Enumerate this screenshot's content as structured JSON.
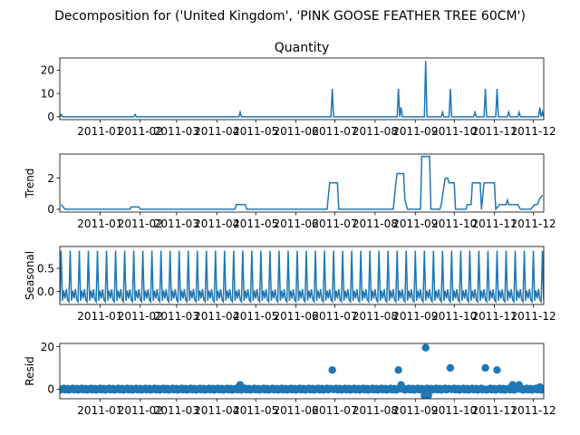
{
  "figure": {
    "suptitle": "Decomposition for ('United Kingdom', 'PINK GOOSE FEATHER TREE 60CM')"
  },
  "colors": {
    "series": "#1f77b4",
    "axis": "#000000",
    "background": "#ffffff"
  },
  "chart_data": [
    {
      "type": "line",
      "title": "Quantity",
      "ylabel": "",
      "ylim": [
        -1.2,
        25.2
      ],
      "yticks": [
        0,
        10,
        20
      ],
      "xlim": [
        "2010-12-01",
        "2011-12-09"
      ],
      "xticks": [
        "2011-01",
        "2011-02",
        "2011-03",
        "2011-04",
        "2011-05",
        "2011-06",
        "2011-07",
        "2011-08",
        "2011-09",
        "2011-10",
        "2011-11",
        "2011-12"
      ],
      "baseline": 0,
      "spikes": [
        {
          "x": "2010-12-02",
          "y": 1
        },
        {
          "x": "2011-01-28",
          "y": 1
        },
        {
          "x": "2011-04-19",
          "y": 2
        },
        {
          "x": "2011-06-29",
          "y": 12
        },
        {
          "x": "2011-08-19",
          "y": 12
        },
        {
          "x": "2011-08-21",
          "y": 4
        },
        {
          "x": "2011-09-09",
          "y": 24
        },
        {
          "x": "2011-09-22",
          "y": 2
        },
        {
          "x": "2011-09-28",
          "y": 12
        },
        {
          "x": "2011-10-17",
          "y": 2
        },
        {
          "x": "2011-10-25",
          "y": 12
        },
        {
          "x": "2011-11-03",
          "y": 12
        },
        {
          "x": "2011-11-12",
          "y": 2
        },
        {
          "x": "2011-11-20",
          "y": 2
        },
        {
          "x": "2011-12-06",
          "y": 4
        },
        {
          "x": "2011-12-08",
          "y": 2
        }
      ]
    },
    {
      "type": "line",
      "title": "",
      "ylabel": "Trend",
      "ylim": [
        -0.18,
        3.55
      ],
      "yticks": [
        0,
        2
      ],
      "xlim": [
        "2010-12-01",
        "2011-12-09"
      ],
      "xticks": [
        "2011-01",
        "2011-02",
        "2011-03",
        "2011-04",
        "2011-05",
        "2011-06",
        "2011-07",
        "2011-08",
        "2011-09",
        "2011-10",
        "2011-11",
        "2011-12"
      ],
      "points": [
        {
          "x": "2010-12-02",
          "y": 0.3
        },
        {
          "x": "2010-12-05",
          "y": 0
        },
        {
          "x": "2011-01-24",
          "y": 0
        },
        {
          "x": "2011-01-25",
          "y": 0.15
        },
        {
          "x": "2011-01-31",
          "y": 0.15
        },
        {
          "x": "2011-02-01",
          "y": 0
        },
        {
          "x": "2011-04-15",
          "y": 0
        },
        {
          "x": "2011-04-16",
          "y": 0.3
        },
        {
          "x": "2011-04-23",
          "y": 0.3
        },
        {
          "x": "2011-04-24",
          "y": 0
        },
        {
          "x": "2011-06-25",
          "y": 0
        },
        {
          "x": "2011-06-27",
          "y": 1.7
        },
        {
          "x": "2011-07-03",
          "y": 1.7
        },
        {
          "x": "2011-07-04",
          "y": 0
        },
        {
          "x": "2011-08-15",
          "y": 0
        },
        {
          "x": "2011-08-17",
          "y": 1.7
        },
        {
          "x": "2011-08-18",
          "y": 2.3
        },
        {
          "x": "2011-08-23",
          "y": 2.3
        },
        {
          "x": "2011-08-24",
          "y": 0.6
        },
        {
          "x": "2011-08-25",
          "y": 0.3
        },
        {
          "x": "2011-08-26",
          "y": 0
        },
        {
          "x": "2011-09-05",
          "y": 0
        },
        {
          "x": "2011-09-06",
          "y": 3.4
        },
        {
          "x": "2011-09-12",
          "y": 3.4
        },
        {
          "x": "2011-09-13",
          "y": 0
        },
        {
          "x": "2011-09-20",
          "y": 0
        },
        {
          "x": "2011-09-21",
          "y": 0.3
        },
        {
          "x": "2011-09-24",
          "y": 2.0
        },
        {
          "x": "2011-09-26",
          "y": 2.0
        },
        {
          "x": "2011-09-27",
          "y": 1.7
        },
        {
          "x": "2011-10-01",
          "y": 1.7
        },
        {
          "x": "2011-10-02",
          "y": 0
        },
        {
          "x": "2011-10-10",
          "y": 0
        },
        {
          "x": "2011-10-11",
          "y": 0.3
        },
        {
          "x": "2011-10-14",
          "y": 0.3
        },
        {
          "x": "2011-10-15",
          "y": 1.7
        },
        {
          "x": "2011-10-21",
          "y": 1.7
        },
        {
          "x": "2011-10-22",
          "y": 0
        },
        {
          "x": "2011-10-24",
          "y": 1.7
        },
        {
          "x": "2011-11-01",
          "y": 1.7
        },
        {
          "x": "2011-11-02",
          "y": 0
        },
        {
          "x": "2011-11-05",
          "y": 0.3
        },
        {
          "x": "2011-11-10",
          "y": 0.3
        },
        {
          "x": "2011-11-11",
          "y": 0.6
        },
        {
          "x": "2011-11-12",
          "y": 0.3
        },
        {
          "x": "2011-11-19",
          "y": 0.3
        },
        {
          "x": "2011-11-21",
          "y": 0
        },
        {
          "x": "2011-11-29",
          "y": 0
        },
        {
          "x": "2011-12-02",
          "y": 0.3
        },
        {
          "x": "2011-12-04",
          "y": 0.3
        },
        {
          "x": "2011-12-06",
          "y": 0.7
        },
        {
          "x": "2011-12-08",
          "y": 0.9
        }
      ]
    },
    {
      "type": "line",
      "title": "",
      "ylabel": "Seasonal",
      "ylim": [
        -0.28,
        0.97
      ],
      "yticks": [
        0.0,
        0.5
      ],
      "ytick_labels": [
        "0.0",
        "0.5"
      ],
      "xlim": [
        "2010-12-01",
        "2011-12-09"
      ],
      "xticks": [
        "2011-01",
        "2011-02",
        "2011-03",
        "2011-04",
        "2011-05",
        "2011-06",
        "2011-07",
        "2011-08",
        "2011-09",
        "2011-10",
        "2011-11",
        "2011-12"
      ],
      "period_days": 7,
      "cycle_values": [
        -0.22,
        0.88,
        -0.2,
        0.02,
        -0.15,
        0.05,
        -0.18
      ]
    },
    {
      "type": "scatter",
      "title": "",
      "ylabel": "Resid",
      "ylim": [
        -4.5,
        21.5
      ],
      "yticks": [
        0,
        20
      ],
      "xlim": [
        "2010-12-01",
        "2011-12-09"
      ],
      "xticks": [
        "2011-01",
        "2011-02",
        "2011-03",
        "2011-04",
        "2011-05",
        "2011-06",
        "2011-07",
        "2011-08",
        "2011-09",
        "2011-10",
        "2011-11",
        "2011-12"
      ],
      "baseline": 0,
      "outliers": [
        {
          "x": "2011-04-19",
          "y": 2
        },
        {
          "x": "2011-06-29",
          "y": 9
        },
        {
          "x": "2011-08-19",
          "y": 9
        },
        {
          "x": "2011-08-21",
          "y": 2
        },
        {
          "x": "2011-09-08",
          "y": -3
        },
        {
          "x": "2011-09-09",
          "y": 19.5
        },
        {
          "x": "2011-09-11",
          "y": -3
        },
        {
          "x": "2011-09-28",
          "y": 10
        },
        {
          "x": "2011-10-25",
          "y": 10
        },
        {
          "x": "2011-11-03",
          "y": 9
        },
        {
          "x": "2011-11-15",
          "y": 2
        },
        {
          "x": "2011-11-20",
          "y": 2
        },
        {
          "x": "2011-12-06",
          "y": 1
        }
      ]
    }
  ]
}
